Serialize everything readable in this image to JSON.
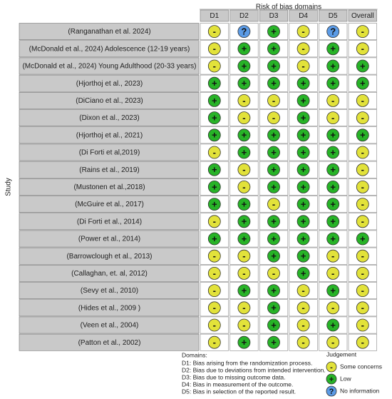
{
  "title": "Risk of bias domains",
  "y_label": "Study",
  "columns": [
    "D1",
    "D2",
    "D3",
    "D4",
    "D5",
    "Overall"
  ],
  "rows": [
    {
      "study": "(Ranganathan et al. 2024)",
      "judgements": [
        "-",
        "?",
        "+",
        "-",
        "?",
        "-"
      ]
    },
    {
      "study": "(McDonald et al., 2024) Adolescence (12-19 years)",
      "judgements": [
        "-",
        "+",
        "+",
        "-",
        "+",
        "-"
      ]
    },
    {
      "study": "(McDonald et al., 2024) Young Adulthood (20-33 years)",
      "judgements": [
        "-",
        "+",
        "+",
        "-",
        "+",
        "+"
      ]
    },
    {
      "study": "(Hjorthoj et al., 2023)",
      "judgements": [
        "+",
        "+",
        "+",
        "+",
        "+",
        "+"
      ]
    },
    {
      "study": "(DiCiano et al., 2023)",
      "judgements": [
        "+",
        "-",
        "-",
        "+",
        "-",
        "-"
      ]
    },
    {
      "study": "(Dixon et al., 2023)",
      "judgements": [
        "+",
        "-",
        "-",
        "+",
        "-",
        "-"
      ]
    },
    {
      "study": "(Hjorthoj et al., 2021)",
      "judgements": [
        "+",
        "+",
        "+",
        "+",
        "+",
        "+"
      ]
    },
    {
      "study": "(Di Forti et al,2019)",
      "judgements": [
        "-",
        "+",
        "+",
        "+",
        "+",
        "-"
      ]
    },
    {
      "study": "(Rains et al., 2019)",
      "judgements": [
        "+",
        "-",
        "+",
        "+",
        "+",
        "-"
      ]
    },
    {
      "study": "(Mustonen et al.,2018)",
      "judgements": [
        "+",
        "-",
        "+",
        "+",
        "+",
        "-"
      ]
    },
    {
      "study": "(McGuire et al., 2017)",
      "judgements": [
        "+",
        "+",
        "-",
        "+",
        "+",
        "-"
      ]
    },
    {
      "study": "(Di Forti et al., 2014)",
      "judgements": [
        "-",
        "+",
        "+",
        "+",
        "+",
        "-"
      ]
    },
    {
      "study": "(Power et al., 2014)",
      "judgements": [
        "+",
        "+",
        "+",
        "+",
        "+",
        "+"
      ]
    },
    {
      "study": "(Barrowclough et al., 2013)",
      "judgements": [
        "-",
        "-",
        "+",
        "+",
        "-",
        "-"
      ]
    },
    {
      "study": "(Callaghan, et. al, 2012)",
      "judgements": [
        "-",
        "-",
        "-",
        "+",
        "-",
        "-"
      ]
    },
    {
      "study": "(Sevy et al., 2010)",
      "judgements": [
        "-",
        "+",
        "+",
        "-",
        "+",
        "-"
      ]
    },
    {
      "study": "(Hides et al., 2009 )",
      "judgements": [
        "-",
        "-",
        "+",
        "-",
        "-",
        "-"
      ]
    },
    {
      "study": "(Veen et al., 2004)",
      "judgements": [
        "-",
        "-",
        "+",
        "-",
        "+",
        "-"
      ]
    },
    {
      "study": "(Patton et al., 2002)",
      "judgements": [
        "-",
        "+",
        "+",
        "-",
        "-",
        "-"
      ]
    }
  ],
  "domains": {
    "title": "Domains:",
    "items": [
      "D1: Bias arising from the randomization process.",
      "D2: Bias due to deviations from intended intervention.",
      "D3: Bias due to missing outcome data.",
      "D4: Bias in measurement of the outcome.",
      "D5: Bias in selection of the reported result."
    ]
  },
  "legend": {
    "title": "Judgement",
    "items": [
      {
        "symbol": "-",
        "label": "Some concerns",
        "color": "#e2e23a"
      },
      {
        "symbol": "+",
        "label": "Low",
        "color": "#27b327"
      },
      {
        "symbol": "?",
        "label": "No information",
        "color": "#5b9be6"
      }
    ]
  }
}
